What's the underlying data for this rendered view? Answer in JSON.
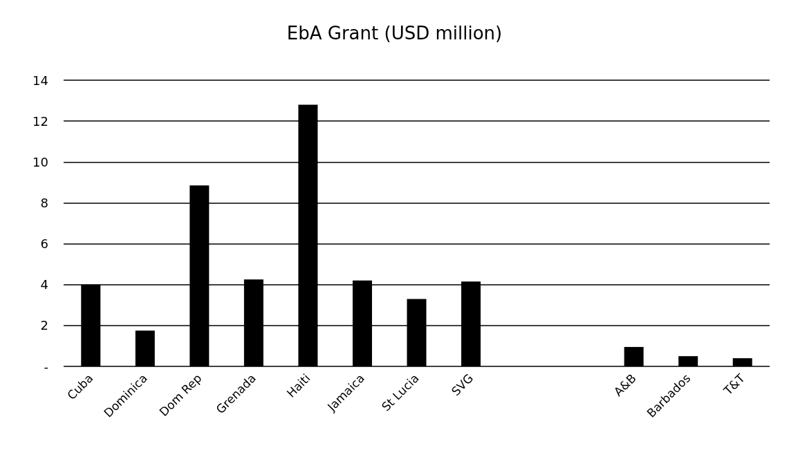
{
  "chart_data": {
    "type": "bar",
    "title": "EbA Grant (USD million)",
    "categories": [
      "Cuba",
      "Dominica",
      "Dom Rep",
      "Grenada",
      "Haiti",
      "Jamaica",
      "St Lucia",
      "SVG",
      null,
      null,
      "A&B",
      "Barbados",
      "T&T"
    ],
    "values": [
      4.0,
      1.75,
      8.85,
      4.25,
      12.8,
      4.2,
      3.3,
      4.15,
      null,
      null,
      0.95,
      0.5,
      0.4
    ],
    "color": "#000000",
    "ylim": [
      0,
      14
    ],
    "yticks": [
      {
        "value": 0,
        "label": "-"
      },
      2,
      4,
      6,
      8,
      10,
      12,
      14
    ],
    "grid": "y"
  }
}
